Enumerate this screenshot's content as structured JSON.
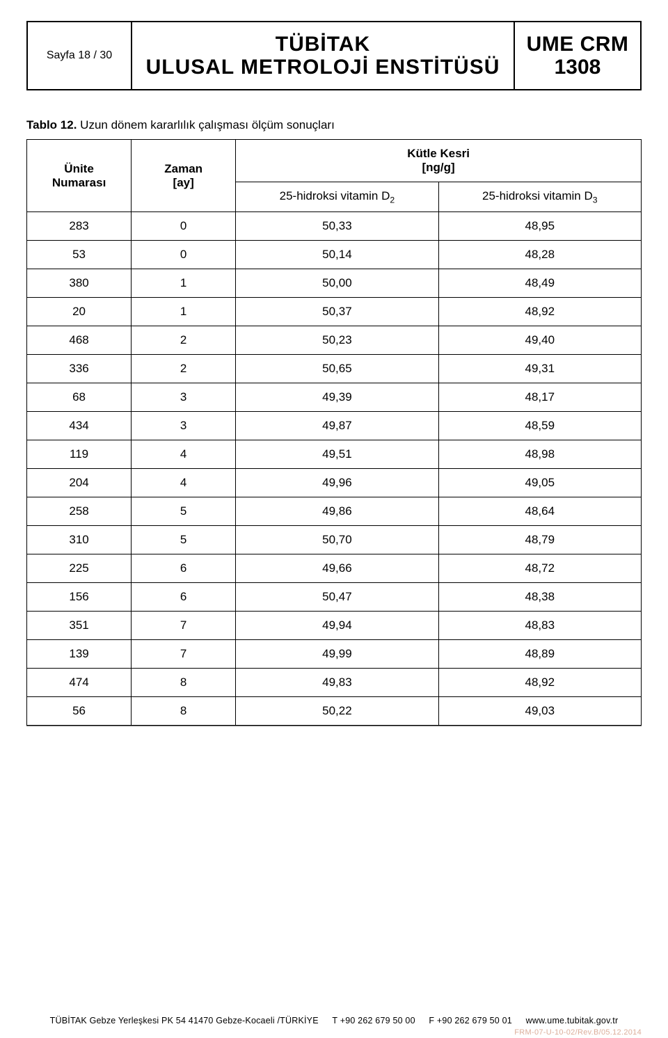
{
  "header": {
    "page_label": "Sayfa  18 / 30",
    "center_line1": "TÜBİTAK",
    "center_line2": "ULUSAL  METROLOJİ  ENSTİTÜSÜ",
    "right_line1": "UME CRM",
    "right_line2": "1308"
  },
  "caption": {
    "label": "Tablo 12.",
    "text": " Uzun dönem kararlılık çalışması ölçüm sonuçları"
  },
  "table": {
    "type": "table",
    "columns": {
      "unit_line1": "Ünite",
      "unit_line2": "Numarası",
      "time_line1": "Zaman",
      "time_line2": "[ay]",
      "mass_title_line1": "Kütle Kesri",
      "mass_title_line2": "[ng/g]",
      "d2_prefix": "25-hidroksi vitamin D",
      "d2_sub": "2",
      "d3_prefix": "25-hidroksi vitamin D",
      "d3_sub": "3"
    },
    "rows": [
      {
        "unit": "283",
        "time": "0",
        "d2": "50,33",
        "d3": "48,95"
      },
      {
        "unit": "53",
        "time": "0",
        "d2": "50,14",
        "d3": "48,28"
      },
      {
        "unit": "380",
        "time": "1",
        "d2": "50,00",
        "d3": "48,49"
      },
      {
        "unit": "20",
        "time": "1",
        "d2": "50,37",
        "d3": "48,92"
      },
      {
        "unit": "468",
        "time": "2",
        "d2": "50,23",
        "d3": "49,40"
      },
      {
        "unit": "336",
        "time": "2",
        "d2": "50,65",
        "d3": "49,31"
      },
      {
        "unit": "68",
        "time": "3",
        "d2": "49,39",
        "d3": "48,17"
      },
      {
        "unit": "434",
        "time": "3",
        "d2": "49,87",
        "d3": "48,59"
      },
      {
        "unit": "119",
        "time": "4",
        "d2": "49,51",
        "d3": "48,98"
      },
      {
        "unit": "204",
        "time": "4",
        "d2": "49,96",
        "d3": "49,05"
      },
      {
        "unit": "258",
        "time": "5",
        "d2": "49,86",
        "d3": "48,64"
      },
      {
        "unit": "310",
        "time": "5",
        "d2": "50,70",
        "d3": "48,79"
      },
      {
        "unit": "225",
        "time": "6",
        "d2": "49,66",
        "d3": "48,72"
      },
      {
        "unit": "156",
        "time": "6",
        "d2": "50,47",
        "d3": "48,38"
      },
      {
        "unit": "351",
        "time": "7",
        "d2": "49,94",
        "d3": "48,83"
      },
      {
        "unit": "139",
        "time": "7",
        "d2": "49,99",
        "d3": "48,89"
      },
      {
        "unit": "474",
        "time": "8",
        "d2": "49,83",
        "d3": "48,92"
      },
      {
        "unit": "56",
        "time": "8",
        "d2": "50,22",
        "d3": "49,03"
      }
    ],
    "border_color": "#000000",
    "background_color": "#ffffff",
    "font_size_pt": 12
  },
  "footer": {
    "address": "TÜBİTAK Gebze Yerleşkesi  PK 54  41470 Gebze-Kocaeli /TÜRKİYE",
    "tel": "T +90 262 679 50 00",
    "fax": "F +90 262 679 50 01",
    "web": "www.ume.tubitak.gov.tr",
    "revision": "FRM-07-U-10-02/Rev.B/05.12.2014"
  }
}
